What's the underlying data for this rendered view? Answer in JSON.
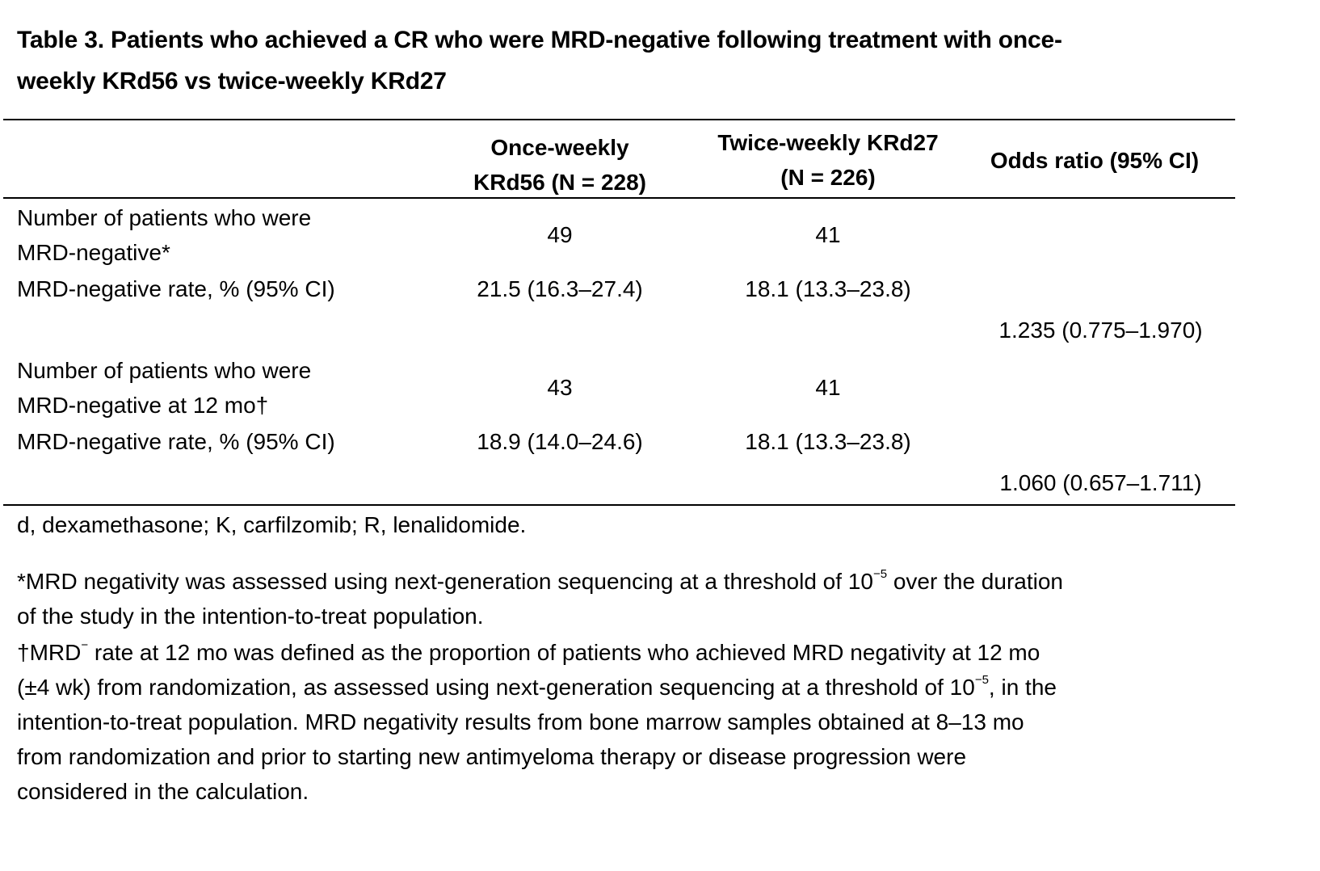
{
  "title": {
    "line1": "Table 3. Patients who achieved a CR who were MRD-negative following treatment with once-",
    "line2": "weekly KRd56 vs twice-weekly KRd27"
  },
  "table": {
    "headers": {
      "col1": {
        "line1": "Once-weekly",
        "line2": "KRd56 (N = 228)"
      },
      "col2": {
        "line1": "Twice-weekly KRd27",
        "line2": "(N = 226)"
      },
      "col3": "Odds ratio (95% CI)"
    },
    "groups": [
      {
        "count_label": {
          "line1": "Number of patients who were",
          "line2": "MRD-negative*"
        },
        "count_values": [
          "49",
          "41"
        ],
        "rate_label": "MRD-negative rate, % (95% CI)",
        "rate_values": [
          "21.5 (16.3–27.4)",
          "18.1 (13.3–23.8)"
        ],
        "odds_ratio": "1.235 (0.775–1.970)"
      },
      {
        "count_label": {
          "line1": "Number of patients who were",
          "line2": "MRD-negative at 12 mo†"
        },
        "count_values": [
          "43",
          "41"
        ],
        "rate_label": "MRD-negative rate, % (95% CI)",
        "rate_values": [
          "18.9 (14.0–24.6)",
          "18.1 (13.3–23.8)"
        ],
        "odds_ratio": "1.060 (0.657–1.711)"
      }
    ]
  },
  "footnotes": {
    "abbreviations": "d, dexamethasone; K, carfilzomib; R, lenalidomide.",
    "note1": {
      "line1_pre": "*MRD negativity was assessed using next-generation sequencing at a threshold of 10",
      "line1_sup": "−5",
      "line1_post": " over the duration",
      "line2": "of the study in the intention-to-treat population."
    },
    "note2": {
      "line1_pre": "†MRD",
      "line1_sup": "−",
      "line1_post": " rate at 12 mo was defined as the proportion of patients who achieved MRD negativity at 12 mo",
      "line2_pre": "(±4 wk) from randomization, as assessed using next-generation sequencing at a threshold of 10",
      "line2_sup": "−5",
      "line2_post": ", in the",
      "line3": "intention-to-treat population. MRD negativity results from bone marrow samples obtained at 8–13 mo",
      "line4": "from randomization and prior to starting new antimyeloma therapy or disease progression were",
      "line5": "considered in the calculation."
    }
  }
}
